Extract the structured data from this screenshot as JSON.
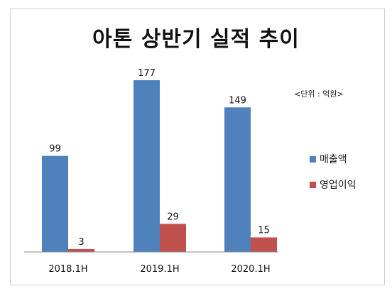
{
  "chart_data": {
    "type": "bar",
    "title": "아톤 상반기 실적 추이",
    "unit_note": "<단위 : 억원>",
    "categories": [
      "2018.1H",
      "2019.1H",
      "2020.1H"
    ],
    "series": [
      {
        "name": "매출액",
        "values": [
          99,
          177,
          149
        ],
        "color": "#4f81bd"
      },
      {
        "name": "영업이익",
        "values": [
          3,
          29,
          15
        ],
        "color": "#c0504d"
      }
    ],
    "ylim": [
      0,
      200
    ],
    "grid": false,
    "legend_position": "right"
  }
}
